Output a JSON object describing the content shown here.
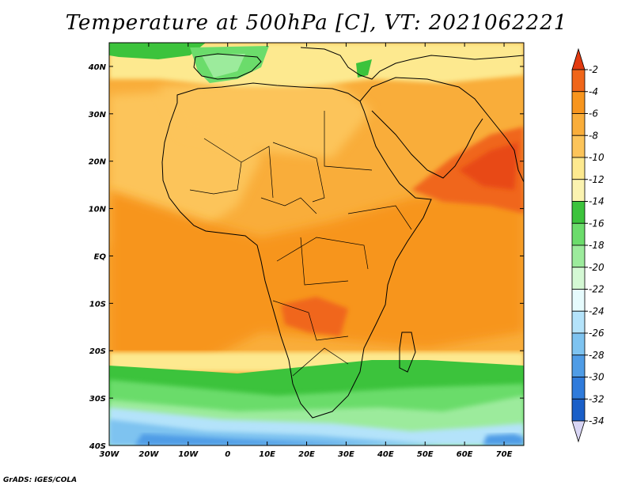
{
  "title": "Temperature at 500hPa [C], VT: 2021062221",
  "footer": "GrADS: IGES/COLA",
  "map": {
    "lat_labels": [
      "40N",
      "30N",
      "20N",
      "10N",
      "EQ",
      "10S",
      "20S",
      "30S",
      "40S"
    ],
    "lon_labels": [
      "30W",
      "20W",
      "10W",
      "0",
      "10E",
      "20E",
      "30E",
      "40E",
      "50E",
      "60E",
      "70E"
    ],
    "lon_range": [
      -30,
      75
    ],
    "lat_range": [
      -40,
      45
    ]
  },
  "colorbar": {
    "levels": [
      "-2",
      "-4",
      "-6",
      "-8",
      "-10",
      "-12",
      "-14",
      "-16",
      "-18",
      "-20",
      "-22",
      "-24",
      "-26",
      "-28",
      "-30",
      "-32",
      "-34"
    ],
    "colors": [
      "#e84a16",
      "#f0661a",
      "#f7951e",
      "#f9ad3a",
      "#fcc45a",
      "#fde98f",
      "#fbf3b0",
      "#3cc33c",
      "#6bdc6b",
      "#9ceb9c",
      "#d4f8d4",
      "#e6fbfd",
      "#b4e3fa",
      "#7ec3f0",
      "#4f9ce6",
      "#2f7bdb",
      "#1a5fc8",
      "#1343a6",
      "#0b1b72"
    ],
    "top_arrow_color": "#e23a10",
    "bottom_arrow_color": "#d9d6f5"
  }
}
